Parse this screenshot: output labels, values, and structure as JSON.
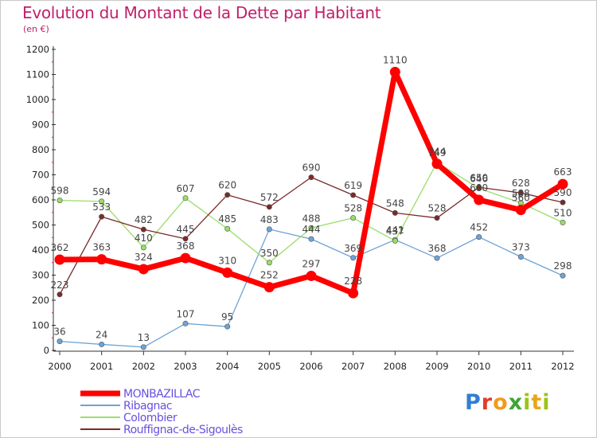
{
  "title": "Evolution du Montant de la Dette par Habitant",
  "subtitle": "(en €)",
  "logo": [
    "P",
    "r",
    "o",
    "x",
    "i",
    "t",
    "i"
  ],
  "chart_data": {
    "type": "line",
    "title": "Evolution du Montant de la Dette par Habitant",
    "subtitle": "(en €)",
    "xlabel": "",
    "ylabel": "",
    "x": [
      "2000",
      "2001",
      "2002",
      "2003",
      "2004",
      "2005",
      "2006",
      "2007",
      "2008",
      "2009",
      "2010",
      "2011",
      "2012"
    ],
    "ylim": [
      0,
      1200
    ],
    "yticks": [
      0,
      100,
      200,
      300,
      400,
      500,
      600,
      700,
      800,
      900,
      1000,
      1100,
      1200
    ],
    "grid": false,
    "legend": "bottom-left",
    "series": [
      {
        "name": "MONBAZILLAC",
        "color": "#ff0000",
        "width": 7,
        "labels_above": true,
        "values": [
          362,
          363,
          324,
          368,
          310,
          252,
          297,
          228,
          1110,
          744,
          600,
          560,
          663
        ]
      },
      {
        "name": "Ribagnac",
        "color": "#6fa3d4",
        "width": 1.3,
        "labels_above": true,
        "values": [
          36,
          24,
          13,
          107,
          95,
          483,
          444,
          369,
          441,
          368,
          452,
          373,
          298
        ]
      },
      {
        "name": "Colombier",
        "color": "#99dd66",
        "width": 1.3,
        "labels_above": true,
        "values": [
          598,
          594,
          410,
          607,
          485,
          350,
          488,
          528,
          437,
          749,
          646,
          588,
          510
        ]
      },
      {
        "name": "Rouffignac-de-Sigoulès",
        "color": "#7a2a2a",
        "width": 1.3,
        "labels_above": true,
        "values": [
          223,
          533,
          482,
          445,
          620,
          572,
          690,
          619,
          548,
          528,
          650,
          628,
          590
        ]
      }
    ]
  }
}
